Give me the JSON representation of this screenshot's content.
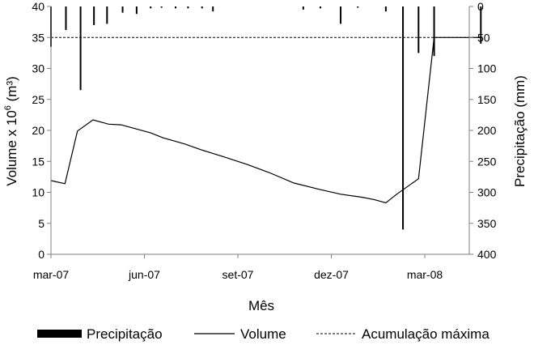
{
  "chart_data": {
    "type": "bar",
    "xlabel": "Mês",
    "ylabel_left": "Volume x 10",
    "ylabel_left_sup": "6",
    "ylabel_left_unit": " (m³)",
    "ylabel_right": "Precipitação (mm)",
    "ylim_left": [
      0,
      40
    ],
    "ylim_right_inverted": [
      0,
      400
    ],
    "left_ticks": [
      "0",
      "5",
      "10",
      "15",
      "20",
      "25",
      "30",
      "35",
      "40"
    ],
    "right_ticks": [
      "0",
      "50",
      "100",
      "150",
      "200",
      "250",
      "300",
      "350",
      "400"
    ],
    "x_tick_labels": [
      {
        "label": "mar-07",
        "month_index": 0
      },
      {
        "label": "jun-07",
        "month_index": 3
      },
      {
        "label": "set-07",
        "month_index": 6
      },
      {
        "label": "dez-07",
        "month_index": 9
      },
      {
        "label": "mar-08",
        "month_index": 12
      }
    ],
    "x_range_months": [
      0,
      13.8
    ],
    "series": [
      {
        "name": "Precipitação",
        "type": "bar",
        "axis": "right",
        "points": [
          [
            0.0,
            65
          ],
          [
            0.48,
            38
          ],
          [
            0.95,
            135
          ],
          [
            1.38,
            30
          ],
          [
            1.8,
            28
          ],
          [
            2.3,
            10
          ],
          [
            2.75,
            12
          ],
          [
            3.2,
            3
          ],
          [
            3.55,
            2
          ],
          [
            4.0,
            3
          ],
          [
            4.4,
            3
          ],
          [
            4.85,
            3
          ],
          [
            5.2,
            8
          ],
          [
            8.1,
            5
          ],
          [
            8.65,
            3
          ],
          [
            9.3,
            28
          ],
          [
            9.85,
            2
          ],
          [
            10.75,
            8
          ],
          [
            11.3,
            360
          ],
          [
            11.8,
            75
          ],
          [
            12.3,
            80
          ],
          [
            13.8,
            60
          ]
        ]
      },
      {
        "name": "Volume",
        "type": "line",
        "axis": "left",
        "points": [
          [
            0.0,
            11.9
          ],
          [
            0.45,
            11.4
          ],
          [
            0.85,
            19.9
          ],
          [
            1.35,
            21.7
          ],
          [
            1.85,
            21.0
          ],
          [
            2.25,
            20.9
          ],
          [
            3.2,
            19.6
          ],
          [
            3.6,
            18.8
          ],
          [
            4.3,
            17.8
          ],
          [
            4.8,
            16.9
          ],
          [
            5.5,
            15.8
          ],
          [
            6.3,
            14.5
          ],
          [
            7.0,
            13.2
          ],
          [
            7.8,
            11.5
          ],
          [
            8.6,
            10.5
          ],
          [
            9.3,
            9.7
          ],
          [
            10.0,
            9.2
          ],
          [
            10.4,
            8.8
          ],
          [
            10.75,
            8.3
          ],
          [
            11.1,
            9.7
          ],
          [
            11.8,
            12.2
          ],
          [
            12.3,
            35.0
          ],
          [
            13.8,
            35.0
          ]
        ]
      },
      {
        "name": "Acumulação máxima",
        "type": "line",
        "axis": "left",
        "style": "dashed",
        "points": [
          [
            0.0,
            35.0
          ],
          [
            13.8,
            35.0
          ]
        ]
      }
    ],
    "legend_position": "bottom",
    "grid": false,
    "colors": {
      "bars": "#000000",
      "volume": "#000000",
      "max": "#000000",
      "axis": "#808080"
    }
  }
}
